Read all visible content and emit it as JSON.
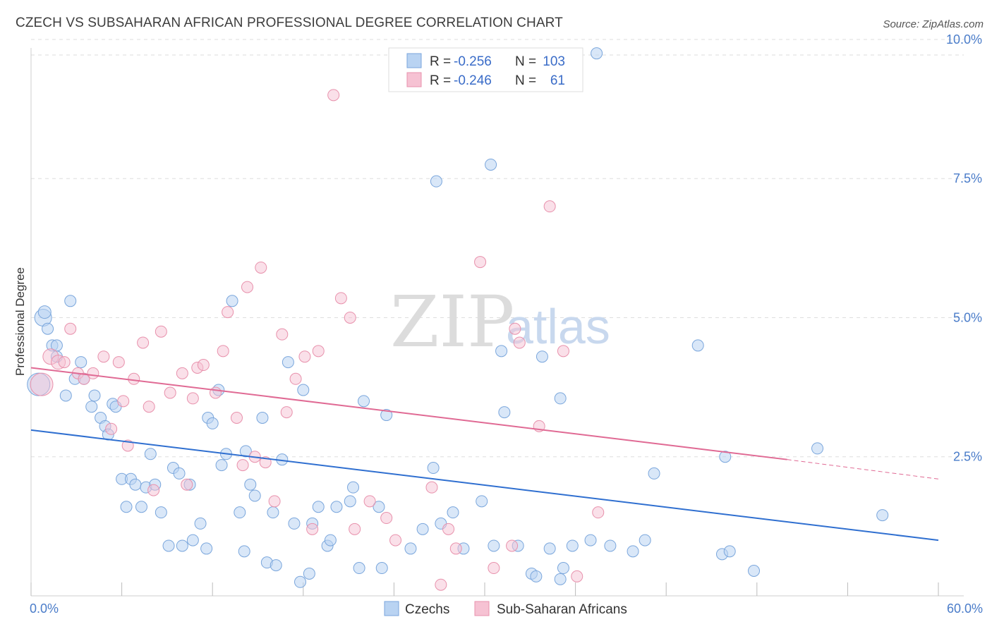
{
  "title": "CZECH VS SUBSAHARAN AFRICAN PROFESSIONAL DEGREE CORRELATION CHART",
  "source": "Source: ZipAtlas.com",
  "watermark": {
    "zip": "ZIP",
    "atlas": "atlas"
  },
  "legend": {
    "r_label": "R =",
    "n_label": "N =",
    "czech_r": "-0.256",
    "czech_n": "103",
    "ssa_r": "-0.246",
    "ssa_n": "61"
  },
  "colors": {
    "czech_fill": "#b9d3f2",
    "czech_stroke": "#7aa6dc",
    "czech_line": "#2f6fd0",
    "ssa_fill": "#f6c2d3",
    "ssa_stroke": "#e891ac",
    "ssa_line": "#e06a94"
  },
  "chart_data": {
    "type": "scatter",
    "xlabel": "",
    "ylabel": "Professional Degree",
    "xlim": [
      0,
      60
    ],
    "ylim": [
      0,
      10.5
    ],
    "y_ticks": [
      {
        "value": 2.5,
        "label": "2.5%"
      },
      {
        "value": 5.0,
        "label": "5.0%"
      },
      {
        "value": 7.5,
        "label": "7.5%"
      },
      {
        "value": 10.0,
        "label": "10.0%"
      }
    ],
    "x_tick_labels": [
      {
        "value": 0,
        "label": "0.0%"
      },
      {
        "value": 60,
        "label": "60.0%"
      }
    ],
    "grid": true,
    "series": [
      {
        "name": "Czechs",
        "trend": {
          "x0": 0,
          "y0": 2.98,
          "x1": 60,
          "y1": 1.0
        },
        "points": [
          [
            0.5,
            3.8,
            16
          ],
          [
            0.8,
            5.0,
            12
          ],
          [
            0.9,
            5.1,
            9
          ],
          [
            1.1,
            4.8,
            8
          ],
          [
            1.4,
            4.5,
            8
          ],
          [
            1.7,
            4.3,
            8
          ],
          [
            1.7,
            4.5,
            8
          ],
          [
            2.3,
            3.6,
            8
          ],
          [
            2.6,
            5.3,
            8
          ],
          [
            2.9,
            3.9,
            8
          ],
          [
            3.3,
            4.2,
            8
          ],
          [
            3.5,
            3.9,
            8
          ],
          [
            4.0,
            3.4,
            8
          ],
          [
            4.2,
            3.6,
            8
          ],
          [
            4.6,
            3.2,
            8
          ],
          [
            4.9,
            3.05,
            8
          ],
          [
            5.1,
            2.9,
            8
          ],
          [
            5.4,
            3.45,
            8
          ],
          [
            5.6,
            3.4,
            8
          ],
          [
            6.0,
            2.1,
            8
          ],
          [
            6.3,
            1.6,
            8
          ],
          [
            6.6,
            2.1,
            8
          ],
          [
            6.9,
            2.0,
            8
          ],
          [
            7.3,
            1.6,
            8
          ],
          [
            7.6,
            1.95,
            8
          ],
          [
            7.9,
            2.55,
            8
          ],
          [
            8.2,
            2.0,
            8
          ],
          [
            8.6,
            1.5,
            8
          ],
          [
            9.1,
            0.9,
            8
          ],
          [
            9.4,
            2.3,
            8
          ],
          [
            9.8,
            2.2,
            8
          ],
          [
            10.0,
            0.9,
            8
          ],
          [
            10.5,
            2.0,
            8
          ],
          [
            10.7,
            1.0,
            8
          ],
          [
            11.2,
            1.3,
            8
          ],
          [
            11.6,
            0.85,
            8
          ],
          [
            11.7,
            3.2,
            8
          ],
          [
            12.0,
            3.1,
            8
          ],
          [
            12.4,
            3.7,
            8
          ],
          [
            12.6,
            2.35,
            8
          ],
          [
            12.9,
            2.55,
            8
          ],
          [
            13.3,
            5.3,
            8
          ],
          [
            13.8,
            1.5,
            8
          ],
          [
            14.1,
            0.8,
            8
          ],
          [
            14.2,
            2.6,
            8
          ],
          [
            14.5,
            2.0,
            8
          ],
          [
            14.8,
            1.8,
            8
          ],
          [
            15.3,
            3.2,
            8
          ],
          [
            15.6,
            0.6,
            8
          ],
          [
            16.0,
            1.5,
            8
          ],
          [
            16.2,
            0.55,
            8
          ],
          [
            16.6,
            2.45,
            8
          ],
          [
            17.0,
            4.2,
            8
          ],
          [
            17.4,
            1.3,
            8
          ],
          [
            17.8,
            0.25,
            8
          ],
          [
            18.0,
            3.7,
            8
          ],
          [
            18.4,
            0.4,
            8
          ],
          [
            18.6,
            1.3,
            8
          ],
          [
            19.0,
            1.6,
            8
          ],
          [
            19.6,
            0.9,
            8
          ],
          [
            19.8,
            1.0,
            8
          ],
          [
            20.2,
            1.6,
            8
          ],
          [
            21.1,
            1.7,
            8
          ],
          [
            21.3,
            1.95,
            8
          ],
          [
            21.7,
            0.5,
            8
          ],
          [
            22.0,
            3.5,
            8
          ],
          [
            23.0,
            1.6,
            8
          ],
          [
            23.2,
            0.5,
            8
          ],
          [
            23.5,
            3.25,
            8
          ],
          [
            25.1,
            0.85,
            8
          ],
          [
            25.9,
            1.2,
            8
          ],
          [
            26.6,
            2.3,
            8
          ],
          [
            26.8,
            7.45,
            8
          ],
          [
            27.1,
            1.3,
            8
          ],
          [
            27.9,
            1.5,
            8
          ],
          [
            28.6,
            0.85,
            8
          ],
          [
            29.8,
            1.7,
            8
          ],
          [
            30.4,
            7.75,
            8
          ],
          [
            30.6,
            0.9,
            8
          ],
          [
            31.1,
            4.4,
            8
          ],
          [
            31.3,
            3.3,
            8
          ],
          [
            32.2,
            0.9,
            8
          ],
          [
            33.1,
            0.4,
            8
          ],
          [
            33.4,
            0.35,
            8
          ],
          [
            33.8,
            4.3,
            8
          ],
          [
            34.3,
            0.85,
            8
          ],
          [
            35.0,
            3.55,
            8
          ],
          [
            35.0,
            0.3,
            8
          ],
          [
            35.2,
            0.5,
            8
          ],
          [
            35.8,
            0.9,
            8
          ],
          [
            37.0,
            1.0,
            8
          ],
          [
            37.4,
            9.75,
            8
          ],
          [
            38.3,
            0.9,
            8
          ],
          [
            39.8,
            0.8,
            8
          ],
          [
            40.6,
            1.0,
            8
          ],
          [
            41.2,
            2.2,
            8
          ],
          [
            44.1,
            4.5,
            8
          ],
          [
            45.7,
            0.75,
            8
          ],
          [
            45.9,
            2.5,
            8
          ],
          [
            46.2,
            0.8,
            8
          ],
          [
            47.8,
            0.45,
            8
          ],
          [
            52.0,
            2.65,
            8
          ],
          [
            56.3,
            1.45,
            8
          ]
        ]
      },
      {
        "name": "Sub-Saharan Africans",
        "trend": {
          "x0": 0,
          "y0": 4.1,
          "x1": 50,
          "y1": 2.45,
          "dash_x1": 60,
          "dash_y1": 2.1
        },
        "points": [
          [
            0.7,
            3.8,
            16
          ],
          [
            1.3,
            4.3,
            11
          ],
          [
            1.8,
            4.2,
            10
          ],
          [
            2.2,
            4.2,
            8
          ],
          [
            2.6,
            4.8,
            8
          ],
          [
            3.1,
            4.0,
            8
          ],
          [
            3.5,
            3.9,
            8
          ],
          [
            4.1,
            4.0,
            8
          ],
          [
            4.8,
            4.3,
            8
          ],
          [
            5.3,
            3.0,
            8
          ],
          [
            5.8,
            4.2,
            8
          ],
          [
            6.1,
            3.5,
            8
          ],
          [
            6.4,
            2.7,
            8
          ],
          [
            6.8,
            3.9,
            8
          ],
          [
            7.4,
            4.55,
            8
          ],
          [
            7.8,
            3.4,
            8
          ],
          [
            8.1,
            1.9,
            8
          ],
          [
            8.6,
            4.75,
            8
          ],
          [
            9.2,
            3.65,
            8
          ],
          [
            10.0,
            4.0,
            8
          ],
          [
            10.3,
            2.0,
            8
          ],
          [
            10.7,
            3.55,
            8
          ],
          [
            11.0,
            4.1,
            8
          ],
          [
            11.4,
            4.15,
            8
          ],
          [
            12.2,
            3.65,
            8
          ],
          [
            12.7,
            4.4,
            8
          ],
          [
            13.0,
            5.1,
            8
          ],
          [
            13.6,
            3.2,
            8
          ],
          [
            14.0,
            2.35,
            8
          ],
          [
            14.3,
            5.55,
            8
          ],
          [
            14.8,
            2.5,
            8
          ],
          [
            15.2,
            5.9,
            8
          ],
          [
            15.5,
            2.4,
            8
          ],
          [
            16.1,
            1.7,
            8
          ],
          [
            16.6,
            4.7,
            8
          ],
          [
            16.9,
            3.3,
            8
          ],
          [
            17.5,
            3.9,
            8
          ],
          [
            18.1,
            4.3,
            8
          ],
          [
            18.6,
            1.2,
            8
          ],
          [
            19.0,
            4.4,
            8
          ],
          [
            20.0,
            9.0,
            8
          ],
          [
            20.5,
            5.35,
            8
          ],
          [
            21.1,
            5.0,
            8
          ],
          [
            21.4,
            1.2,
            8
          ],
          [
            22.4,
            1.7,
            8
          ],
          [
            23.5,
            1.4,
            8
          ],
          [
            24.1,
            1.0,
            8
          ],
          [
            26.5,
            1.95,
            8
          ],
          [
            27.1,
            0.2,
            8
          ],
          [
            27.6,
            1.2,
            8
          ],
          [
            28.1,
            0.85,
            8
          ],
          [
            29.7,
            6.0,
            8
          ],
          [
            30.6,
            0.5,
            8
          ],
          [
            31.8,
            0.9,
            8
          ],
          [
            32.0,
            4.8,
            8
          ],
          [
            32.3,
            4.55,
            8
          ],
          [
            33.6,
            3.05,
            8
          ],
          [
            34.3,
            7.0,
            8
          ],
          [
            35.2,
            4.4,
            8
          ],
          [
            36.1,
            0.35,
            8
          ],
          [
            37.5,
            1.5,
            8
          ]
        ]
      }
    ]
  }
}
